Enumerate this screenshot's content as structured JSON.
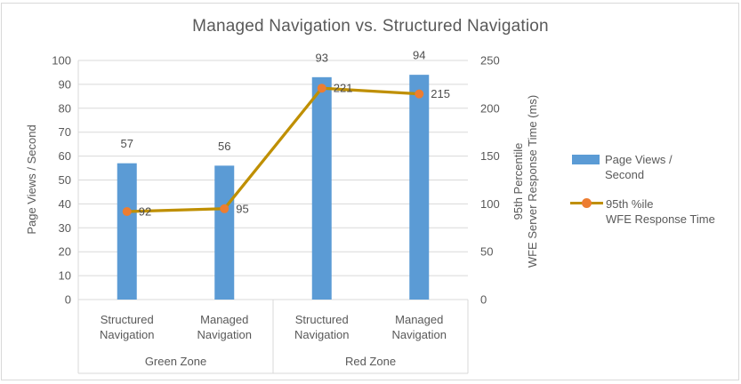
{
  "chart_data": {
    "type": "combo-bar-line",
    "title": "Managed Navigation vs. Structured Navigation",
    "categories": [
      {
        "line1": "Structured",
        "line2": "Navigation"
      },
      {
        "line1": "Managed",
        "line2": "Navigation"
      },
      {
        "line1": "Structured",
        "line2": "Navigation"
      },
      {
        "line1": "Managed",
        "line2": "Navigation"
      }
    ],
    "groups": [
      "Green Zone",
      "Red Zone"
    ],
    "series": [
      {
        "name": "Page Views / Second",
        "type": "bar",
        "axis": "left",
        "color": "#5B9BD5",
        "values": [
          57,
          56,
          93,
          94
        ]
      },
      {
        "name": "95th %ile WFE Response Time",
        "type": "line",
        "axis": "right",
        "line_color": "#BF8F00",
        "marker_color": "#ED7D31",
        "values": [
          92,
          95,
          221,
          215
        ]
      }
    ],
    "left_axis": {
      "title": "Page Views / Second",
      "min": 0,
      "max": 100,
      "ticks": [
        0,
        10,
        20,
        30,
        40,
        50,
        60,
        70,
        80,
        90,
        100
      ]
    },
    "right_axis": {
      "title_line1": "95th Percentile",
      "title_line2": "WFE Server Response Time (ms)",
      "min": 0,
      "max": 250,
      "ticks": [
        0,
        50,
        100,
        150,
        200,
        250
      ]
    },
    "gridlines": true,
    "legend_position": "right"
  },
  "legend": {
    "item1_line1": "Page Views /",
    "item1_line2": "Second",
    "item2_line1": "95th %ile",
    "item2_line2": "WFE Response Time"
  },
  "colors": {
    "bar": "#5B9BD5",
    "line": "#BF8F00",
    "marker": "#ED7D31",
    "gridline": "#D9D9D9",
    "axis_text": "#595959",
    "frame_border": "#D9D9D9"
  }
}
